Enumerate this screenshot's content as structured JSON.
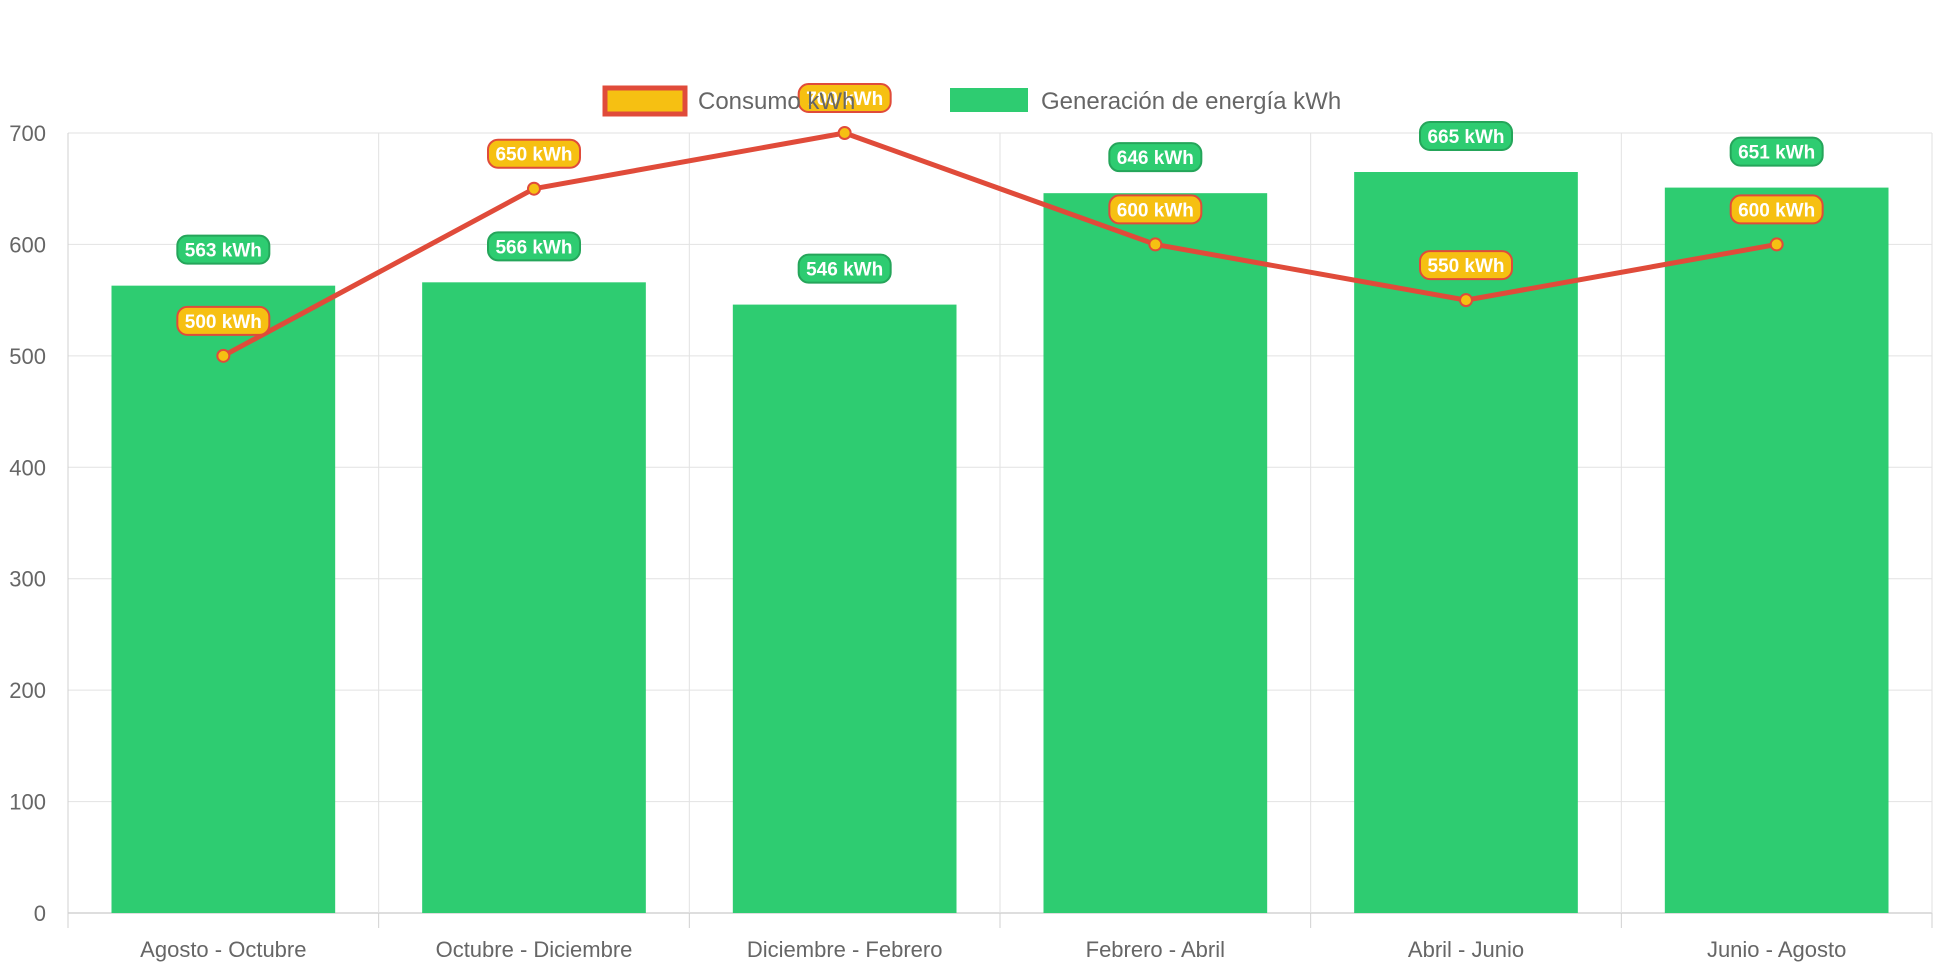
{
  "chart_data": {
    "type": "bar",
    "categories": [
      "Agosto - Octubre",
      "Octubre - Diciembre",
      "Diciembre - Febrero",
      "Febrero - Abril",
      "Abril - Junio",
      "Junio - Agosto"
    ],
    "series": [
      {
        "name": "Consumo kWh",
        "type": "line",
        "values": [
          500,
          650,
          700,
          600,
          550,
          600
        ],
        "line_color": "#e04b3a",
        "point_color": "#f6c012"
      },
      {
        "name": "Generación de energía kWh",
        "type": "bar",
        "values": [
          563,
          566,
          546,
          646,
          665,
          651
        ],
        "color": "#2ecc71"
      }
    ],
    "value_suffix": " kWh",
    "ylim": [
      0,
      700
    ],
    "yticks": [
      0,
      100,
      200,
      300,
      400,
      500,
      600,
      700
    ],
    "grid": true,
    "legend_position": "top",
    "title": "",
    "xlabel": "",
    "ylabel": ""
  }
}
